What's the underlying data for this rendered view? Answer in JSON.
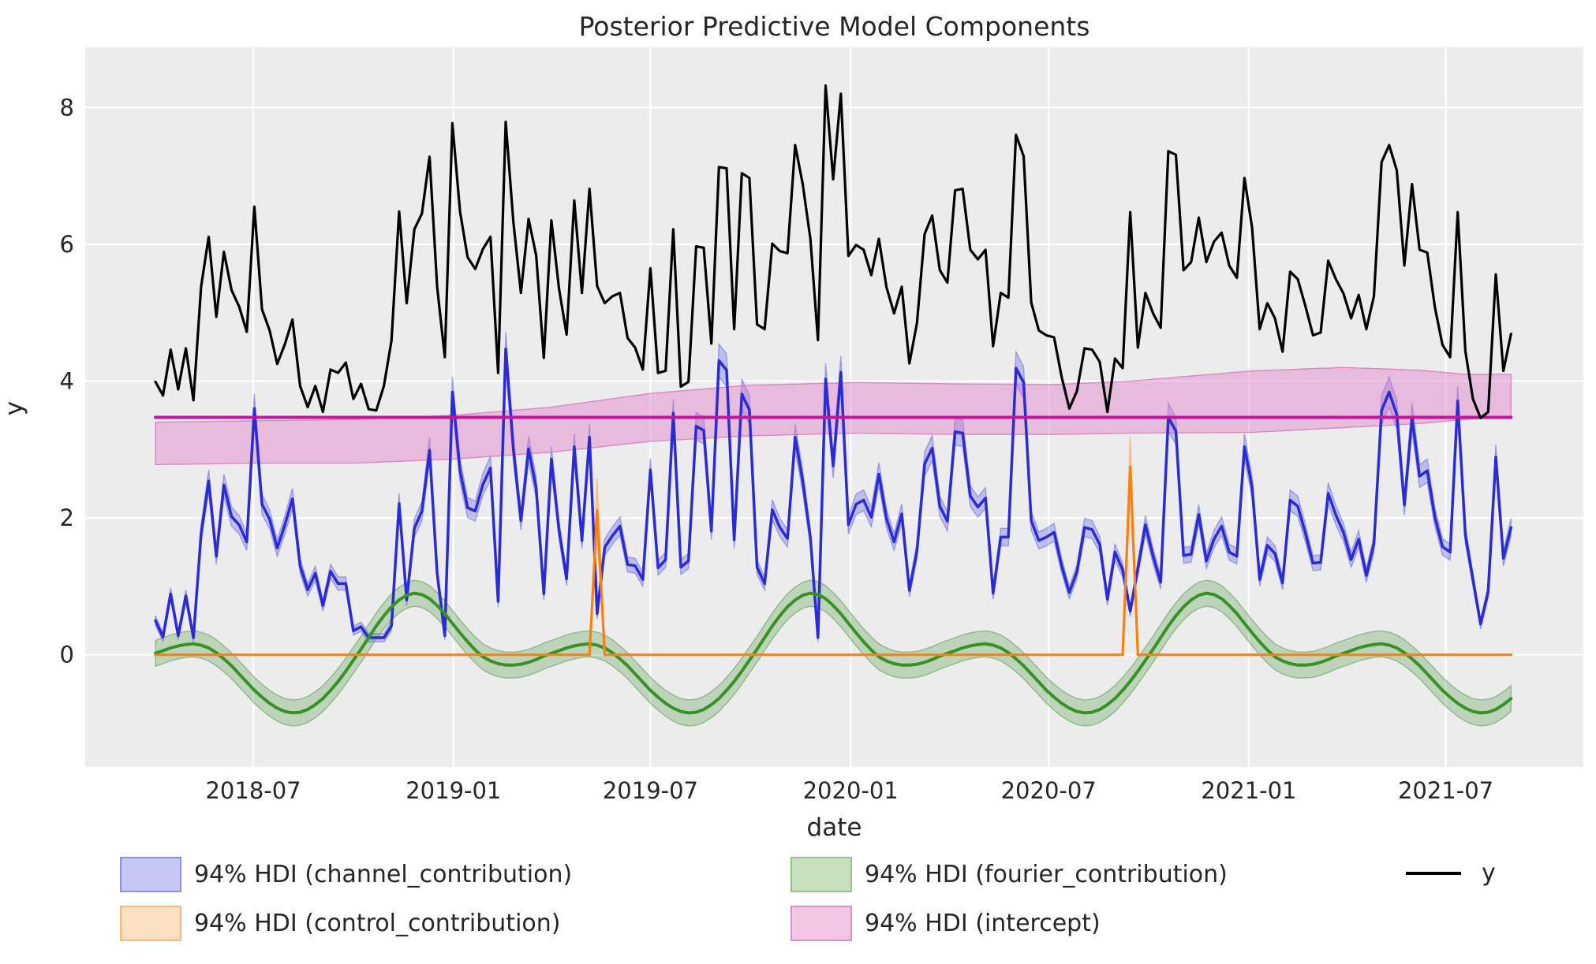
{
  "figure": {
    "title": "Posterior Predictive Model Components",
    "xlabel": "date",
    "ylabel": "y",
    "background": "#ffffff",
    "plot_background": "#ececec",
    "grid_color": "#ffffff",
    "text_color": "#262626"
  },
  "axes": {
    "xlim_days": [
      -64.5,
      1312.5
    ],
    "ylim": [
      -1.64,
      8.88
    ],
    "yticks": [
      0,
      2,
      4,
      6,
      8
    ],
    "xticks": [
      {
        "label": "2018-07",
        "day": 90
      },
      {
        "label": "2019-01",
        "day": 274
      },
      {
        "label": "2019-07",
        "day": 455
      },
      {
        "label": "2020-01",
        "day": 639
      },
      {
        "label": "2020-07",
        "day": 821
      },
      {
        "label": "2021-01",
        "day": 1005
      },
      {
        "label": "2021-07",
        "day": 1186
      }
    ]
  },
  "legend": {
    "entries": [
      {
        "label": "94% HDI (channel_contribution)",
        "kind": "patch",
        "fill": "#c6c6f4",
        "edge": "#8f8fe0"
      },
      {
        "label": "94% HDI (control_contribution)",
        "kind": "patch",
        "fill": "#fcdfc0",
        "edge": "#f5b97f"
      },
      {
        "label": "94% HDI (fourier_contribution)",
        "kind": "patch",
        "fill": "#c8e0bd",
        "edge": "#94c489"
      },
      {
        "label": "94% HDI (intercept)",
        "kind": "patch",
        "fill": "#f3c7e4",
        "edge": "#dd8fcb"
      },
      {
        "label": "y",
        "kind": "line",
        "color": "#000000"
      }
    ]
  },
  "chart_data": {
    "type": "line",
    "title": "Posterior Predictive Model Components",
    "xlabel": "date",
    "ylabel": "y",
    "grid": true,
    "x_start_date": "2018-04-02",
    "x_freq_days": 7,
    "n_points": 179,
    "series": [
      {
        "name": "y",
        "kind": "line",
        "color": "#000000",
        "width": 3.2,
        "values": [
          3.99,
          3.79,
          4.46,
          3.88,
          4.48,
          3.72,
          5.38,
          6.11,
          4.94,
          5.89,
          5.33,
          5.09,
          4.72,
          6.55,
          5.05,
          4.74,
          4.25,
          4.54,
          4.9,
          3.93,
          3.62,
          3.93,
          3.55,
          4.17,
          4.12,
          4.27,
          3.74,
          3.96,
          3.59,
          3.57,
          3.93,
          4.59,
          6.48,
          5.14,
          6.22,
          6.45,
          7.28,
          5.38,
          4.35,
          7.77,
          6.48,
          5.81,
          5.64,
          5.93,
          6.11,
          4.12,
          7.79,
          6.33,
          5.29,
          6.37,
          5.84,
          4.34,
          6.35,
          5.35,
          4.68,
          6.64,
          5.29,
          6.81,
          5.39,
          5.14,
          5.24,
          5.29,
          4.63,
          4.49,
          4.17,
          5.65,
          4.12,
          4.15,
          6.22,
          3.92,
          3.99,
          5.97,
          5.95,
          4.55,
          7.13,
          7.11,
          4.76,
          7.04,
          6.97,
          4.83,
          4.76,
          6.01,
          5.9,
          5.87,
          7.45,
          6.88,
          6.08,
          4.6,
          8.32,
          6.95,
          8.2,
          5.83,
          5.99,
          5.92,
          5.55,
          6.08,
          5.37,
          4.99,
          5.38,
          4.26,
          4.85,
          6.15,
          6.42,
          5.62,
          5.44,
          6.79,
          6.81,
          5.92,
          5.78,
          5.92,
          4.51,
          5.29,
          5.22,
          7.6,
          7.29,
          5.15,
          4.74,
          4.67,
          4.64,
          4.06,
          3.6,
          3.85,
          4.48,
          4.46,
          4.28,
          3.55,
          4.33,
          4.19,
          6.47,
          4.49,
          5.29,
          4.99,
          4.78,
          7.36,
          7.31,
          5.62,
          5.74,
          6.39,
          5.74,
          6.04,
          6.17,
          5.69,
          5.51,
          6.97,
          6.24,
          4.76,
          5.14,
          4.92,
          4.43,
          5.6,
          5.49,
          5.1,
          4.67,
          4.71,
          5.76,
          5.49,
          5.28,
          4.92,
          5.26,
          4.76,
          5.24,
          7.2,
          7.45,
          7.08,
          5.69,
          6.88,
          5.92,
          5.88,
          5.08,
          4.53,
          4.35,
          6.47,
          4.44,
          3.74,
          3.46,
          3.55,
          5.56,
          4.15,
          4.69
        ]
      },
      {
        "name": "channel_contribution",
        "kind": "line+band",
        "color": "#2a2ad6",
        "width": 3.5,
        "band_fill": "rgba(80,80,230,0.30)",
        "band_edge": "rgba(80,80,230,0.45)",
        "band_halfwidth_base": 0.05,
        "band_halfwidth_scale": 0.045,
        "values": [
          0.5,
          0.26,
          0.89,
          0.28,
          0.86,
          0.25,
          1.77,
          2.54,
          1.44,
          2.48,
          2.02,
          1.9,
          1.65,
          3.6,
          2.2,
          1.98,
          1.56,
          1.9,
          2.28,
          1.3,
          0.95,
          1.19,
          0.72,
          1.22,
          1.04,
          1.04,
          0.35,
          0.41,
          0.25,
          0.25,
          0.25,
          0.42,
          2.21,
          0.8,
          1.85,
          2.1,
          2.99,
          1.19,
          0.28,
          3.84,
          2.69,
          2.15,
          2.1,
          2.49,
          2.73,
          0.78,
          4.47,
          3.01,
          1.96,
          3.01,
          2.44,
          0.89,
          2.86,
          1.82,
          1.11,
          3.04,
          1.67,
          3.18,
          0.6,
          1.57,
          1.74,
          1.88,
          1.32,
          1.3,
          1.1,
          2.7,
          1.27,
          1.39,
          3.53,
          1.28,
          1.37,
          3.34,
          3.28,
          1.81,
          4.3,
          4.16,
          1.68,
          3.81,
          3.58,
          1.28,
          1.04,
          2.12,
          1.86,
          1.7,
          3.18,
          2.54,
          1.71,
          0.25,
          4.03,
          2.76,
          4.13,
          1.9,
          2.2,
          2.26,
          2.01,
          2.64,
          1.99,
          1.65,
          2.06,
          0.94,
          1.52,
          2.79,
          3.02,
          2.17,
          1.95,
          3.26,
          3.24,
          2.32,
          2.16,
          2.29,
          0.9,
          1.72,
          1.72,
          4.19,
          3.98,
          1.96,
          1.67,
          1.72,
          1.79,
          1.3,
          0.91,
          1.21,
          1.86,
          1.83,
          1.61,
          0.81,
          1.5,
          1.24,
          0.64,
          1.26,
          1.9,
          1.44,
          1.06,
          3.47,
          3.27,
          1.45,
          1.47,
          2.05,
          1.37,
          1.69,
          1.88,
          1.5,
          1.44,
          3.04,
          2.45,
          1.1,
          1.6,
          1.48,
          1.05,
          2.26,
          2.17,
          1.78,
          1.34,
          1.35,
          2.36,
          2.04,
          1.79,
          1.39,
          1.69,
          1.16,
          1.62,
          3.57,
          3.84,
          3.51,
          2.19,
          3.47,
          2.61,
          2.69,
          2.01,
          1.58,
          1.5,
          3.71,
          1.75,
          1.1,
          0.45,
          0.92,
          2.89,
          1.41,
          1.86
        ]
      },
      {
        "name": "fourier_contribution",
        "kind": "line+band",
        "color": "#369223",
        "width": 4,
        "band_fill": "rgba(70,150,60,0.28)",
        "band_edge": "rgba(70,150,60,0.5)",
        "band_halfwidth": 0.19,
        "values": [
          0.02,
          0.06,
          0.1,
          0.13,
          0.15,
          0.16,
          0.14,
          0.1,
          0.03,
          -0.06,
          -0.16,
          -0.28,
          -0.4,
          -0.52,
          -0.62,
          -0.71,
          -0.78,
          -0.83,
          -0.85,
          -0.84,
          -0.8,
          -0.73,
          -0.64,
          -0.52,
          -0.39,
          -0.24,
          -0.08,
          0.08,
          0.25,
          0.42,
          0.57,
          0.7,
          0.8,
          0.87,
          0.9,
          0.88,
          0.82,
          0.72,
          0.6,
          0.46,
          0.32,
          0.19,
          0.07,
          -0.03,
          -0.09,
          -0.13,
          -0.15,
          -0.15,
          -0.14,
          -0.11,
          -0.07,
          -0.02,
          0.02,
          0.06,
          0.1,
          0.13,
          0.15,
          0.16,
          0.14,
          0.1,
          0.03,
          -0.06,
          -0.16,
          -0.28,
          -0.4,
          -0.52,
          -0.62,
          -0.71,
          -0.78,
          -0.83,
          -0.85,
          -0.84,
          -0.8,
          -0.73,
          -0.64,
          -0.52,
          -0.39,
          -0.24,
          -0.08,
          0.08,
          0.25,
          0.42,
          0.57,
          0.7,
          0.8,
          0.87,
          0.9,
          0.88,
          0.82,
          0.72,
          0.6,
          0.46,
          0.32,
          0.19,
          0.07,
          -0.03,
          -0.09,
          -0.13,
          -0.15,
          -0.15,
          -0.14,
          -0.11,
          -0.07,
          -0.02,
          0.02,
          0.06,
          0.1,
          0.13,
          0.15,
          0.16,
          0.14,
          0.1,
          0.03,
          -0.06,
          -0.16,
          -0.28,
          -0.4,
          -0.52,
          -0.62,
          -0.71,
          -0.78,
          -0.83,
          -0.85,
          -0.84,
          -0.8,
          -0.73,
          -0.64,
          -0.52,
          -0.39,
          -0.24,
          -0.08,
          0.08,
          0.25,
          0.42,
          0.57,
          0.7,
          0.8,
          0.87,
          0.9,
          0.88,
          0.82,
          0.72,
          0.6,
          0.46,
          0.32,
          0.19,
          0.07,
          -0.03,
          -0.09,
          -0.13,
          -0.15,
          -0.15,
          -0.14,
          -0.11,
          -0.07,
          -0.02,
          0.02,
          0.06,
          0.1,
          0.13,
          0.15,
          0.16,
          0.14,
          0.1,
          0.03,
          -0.06,
          -0.16,
          -0.28,
          -0.4,
          -0.52,
          -0.62,
          -0.71,
          -0.78,
          -0.83,
          -0.85,
          -0.84,
          -0.8,
          -0.73,
          -0.64
        ]
      },
      {
        "name": "control_contribution",
        "kind": "line+band",
        "color": "#ff7f0e",
        "width": 3.2,
        "band_fill": "rgba(255,150,50,0.35)",
        "band_edge": "rgba(255,150,50,0.5)",
        "baseline": 0,
        "spikes": [
          {
            "index": 58,
            "date": "2019-05-13",
            "value": 2.11,
            "lo": 1.7,
            "hi": 2.58
          },
          {
            "index": 128,
            "date": "2020-09-14",
            "value": 2.75,
            "lo": 2.3,
            "hi": 3.2
          }
        ]
      },
      {
        "name": "intercept",
        "kind": "line+band",
        "color": "#c0169a",
        "width": 4,
        "band_fill": "rgba(222,120,195,0.42)",
        "band_edge": "rgba(213,95,180,0.65)",
        "mean": 3.47,
        "band_anchors": [
          {
            "index": 0,
            "lo": 2.78,
            "hi": 3.4
          },
          {
            "index": 13,
            "lo": 2.8,
            "hi": 3.42
          },
          {
            "index": 26,
            "lo": 2.8,
            "hi": 3.44
          },
          {
            "index": 39,
            "lo": 2.86,
            "hi": 3.5
          },
          {
            "index": 52,
            "lo": 2.96,
            "hi": 3.62
          },
          {
            "index": 65,
            "lo": 3.12,
            "hi": 3.82
          },
          {
            "index": 78,
            "lo": 3.2,
            "hi": 3.94
          },
          {
            "index": 92,
            "lo": 3.24,
            "hi": 3.98
          },
          {
            "index": 105,
            "lo": 3.22,
            "hi": 3.96
          },
          {
            "index": 118,
            "lo": 3.22,
            "hi": 3.95
          },
          {
            "index": 128,
            "lo": 3.24,
            "hi": 4.0
          },
          {
            "index": 144,
            "lo": 3.25,
            "hi": 4.15
          },
          {
            "index": 156,
            "lo": 3.32,
            "hi": 4.2
          },
          {
            "index": 166,
            "lo": 3.38,
            "hi": 4.16
          },
          {
            "index": 172,
            "lo": 3.44,
            "hi": 4.1
          },
          {
            "index": 178,
            "lo": 3.48,
            "hi": 4.1
          }
        ]
      }
    ]
  }
}
